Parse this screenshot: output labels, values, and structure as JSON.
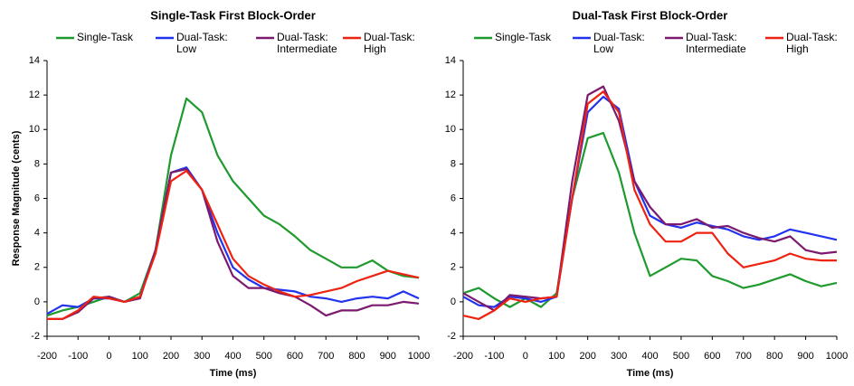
{
  "chart_data": [
    {
      "type": "line",
      "title": "Single-Task First Block-Order",
      "xlabel": "Time (ms)",
      "ylabel": "Response Magnitude (cents)",
      "x": [
        -200,
        -150,
        -100,
        -50,
        0,
        50,
        100,
        150,
        200,
        250,
        300,
        350,
        400,
        450,
        500,
        550,
        600,
        650,
        700,
        750,
        800,
        850,
        900,
        950,
        1000
      ],
      "xlim": [
        -200,
        1000
      ],
      "xticks": [
        -200,
        -100,
        0,
        100,
        200,
        300,
        400,
        500,
        600,
        700,
        800,
        900,
        1000
      ],
      "ylim": [
        -2,
        14
      ],
      "yticks": [
        -2,
        0,
        2,
        4,
        6,
        8,
        10,
        12,
        14
      ],
      "grid": false,
      "series": [
        {
          "name": "Single-Task",
          "color": "#1f9a2e",
          "values": [
            -0.8,
            -0.5,
            -0.3,
            0,
            0.3,
            0,
            0.5,
            3,
            8.5,
            11.8,
            11,
            8.5,
            7,
            6,
            5,
            4.5,
            3.8,
            3,
            2.5,
            2,
            2,
            2.4,
            1.8,
            1.5,
            1.4
          ]
        },
        {
          "name": "Dual-Task: Low",
          "color": "#2233ee",
          "values": [
            -0.7,
            -0.2,
            -0.3,
            0.2,
            0.2,
            0,
            0.3,
            3,
            7.5,
            7.8,
            6.5,
            4,
            2,
            1.3,
            0.8,
            0.7,
            0.6,
            0.3,
            0.2,
            0,
            0.2,
            0.3,
            0.2,
            0.6,
            0.2
          ]
        },
        {
          "name": "Dual-Task: Intermediate",
          "color": "#7b1a6e",
          "values": [
            -1,
            -1,
            -0.6,
            0.2,
            0.3,
            0,
            0.2,
            3,
            7.5,
            7.7,
            6.5,
            3.5,
            1.5,
            0.8,
            0.8,
            0.5,
            0.3,
            -0.2,
            -0.8,
            -0.5,
            -0.5,
            -0.2,
            -0.2,
            0,
            -0.1
          ]
        },
        {
          "name": "Dual-Task: High",
          "color": "#ee2211",
          "values": [
            -1,
            -1,
            -0.5,
            0.3,
            0.2,
            0,
            0.3,
            2.8,
            7,
            7.6,
            6.5,
            4.5,
            2.5,
            1.5,
            1,
            0.6,
            0.3,
            0.4,
            0.6,
            0.8,
            1.2,
            1.5,
            1.8,
            1.6,
            1.4
          ]
        }
      ]
    },
    {
      "type": "line",
      "title": "Dual-Task First Block-Order",
      "xlabel": "Time (ms)",
      "x": [
        -200,
        -150,
        -100,
        -50,
        0,
        50,
        100,
        150,
        200,
        250,
        300,
        350,
        400,
        450,
        500,
        550,
        600,
        650,
        700,
        750,
        800,
        850,
        900,
        950,
        1000
      ],
      "xlim": [
        -200,
        1000
      ],
      "xticks": [
        -200,
        -100,
        0,
        100,
        200,
        300,
        400,
        500,
        600,
        700,
        800,
        900,
        1000
      ],
      "ylim": [
        -2,
        14
      ],
      "yticks": [
        -2,
        0,
        2,
        4,
        6,
        8,
        10,
        12,
        14
      ],
      "grid": false,
      "series": [
        {
          "name": "Single-Task",
          "color": "#1f9a2e",
          "values": [
            0.5,
            0.8,
            0.2,
            -0.3,
            0.2,
            -0.3,
            0.5,
            6,
            9.5,
            9.8,
            7.5,
            4,
            1.5,
            2,
            2.5,
            2.4,
            1.5,
            1.2,
            0.8,
            1,
            1.3,
            1.6,
            1.2,
            0.9,
            1.1
          ]
        },
        {
          "name": "Dual-Task: Low",
          "color": "#2233ee",
          "values": [
            0.3,
            -0.2,
            -0.3,
            0.3,
            0.2,
            0,
            0.3,
            6,
            11,
            11.9,
            11.2,
            7,
            5,
            4.5,
            4.3,
            4.6,
            4.4,
            4.2,
            3.8,
            3.6,
            3.8,
            4.2,
            4,
            3.8,
            3.6
          ]
        },
        {
          "name": "Dual-Task: Intermediate",
          "color": "#7b1a6e",
          "values": [
            0.5,
            0,
            -0.5,
            0.4,
            0.3,
            0.2,
            0.3,
            7,
            12,
            12.5,
            10.5,
            7,
            5.5,
            4.5,
            4.5,
            4.8,
            4.3,
            4.4,
            4,
            3.7,
            3.5,
            3.8,
            3,
            2.8,
            2.9
          ]
        },
        {
          "name": "Dual-Task: High",
          "color": "#ee2211",
          "values": [
            -0.8,
            -1,
            -0.5,
            0.2,
            0,
            0.2,
            0.3,
            6,
            11.5,
            12.2,
            11,
            6.5,
            4.5,
            3.5,
            3.5,
            4,
            4,
            2.8,
            2,
            2.2,
            2.4,
            2.8,
            2.5,
            2.4,
            2.4
          ]
        }
      ]
    }
  ]
}
